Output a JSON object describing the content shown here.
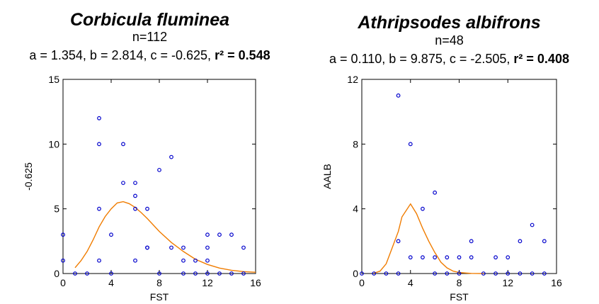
{
  "colors": {
    "points": "#0000cc",
    "curve": "#f07c00",
    "axes": "#000000"
  },
  "chart_data": [
    {
      "type": "scatter",
      "title": "Corbicula fluminea",
      "n_label": "n=112",
      "params_text": "a = 1.354, b = 2.814, c = -0.625,",
      "r2_text": "r² = 0.548",
      "xlabel": "FST",
      "ylabel": "-0.625",
      "xlim": [
        0,
        16
      ],
      "ylim": [
        0,
        15
      ],
      "xticks": [
        0,
        4,
        8,
        12,
        16
      ],
      "yticks": [
        0,
        5,
        10,
        15
      ],
      "grid": false,
      "points": [
        [
          0,
          3
        ],
        [
          0,
          1
        ],
        [
          1,
          0
        ],
        [
          2,
          0
        ],
        [
          3,
          12
        ],
        [
          3,
          10
        ],
        [
          3,
          5
        ],
        [
          3,
          1
        ],
        [
          4,
          3
        ],
        [
          4,
          0
        ],
        [
          5,
          10
        ],
        [
          5,
          7
        ],
        [
          6,
          7
        ],
        [
          6,
          6
        ],
        [
          6,
          5
        ],
        [
          6,
          1
        ],
        [
          7,
          5
        ],
        [
          7,
          2
        ],
        [
          7,
          2
        ],
        [
          8,
          8
        ],
        [
          8,
          0
        ],
        [
          9,
          9
        ],
        [
          9,
          2
        ],
        [
          10,
          2
        ],
        [
          10,
          1
        ],
        [
          10,
          0
        ],
        [
          11,
          1
        ],
        [
          11,
          0
        ],
        [
          12,
          3
        ],
        [
          12,
          2
        ],
        [
          12,
          1
        ],
        [
          12,
          0
        ],
        [
          13,
          3
        ],
        [
          13,
          0
        ],
        [
          14,
          3
        ],
        [
          14,
          0
        ],
        [
          15,
          2
        ],
        [
          15,
          0
        ]
      ],
      "curve": [
        [
          1,
          0.45
        ],
        [
          1.5,
          1.0
        ],
        [
          2,
          1.7
        ],
        [
          2.5,
          2.6
        ],
        [
          3,
          3.6
        ],
        [
          3.5,
          4.4
        ],
        [
          4,
          5.0
        ],
        [
          4.5,
          5.45
        ],
        [
          5,
          5.55
        ],
        [
          5.5,
          5.4
        ],
        [
          6,
          5.1
        ],
        [
          6.5,
          4.7
        ],
        [
          7,
          4.25
        ],
        [
          7.5,
          3.75
        ],
        [
          8,
          3.25
        ],
        [
          9,
          2.4
        ],
        [
          10,
          1.7
        ],
        [
          11,
          1.1
        ],
        [
          12,
          0.7
        ],
        [
          13,
          0.42
        ],
        [
          14,
          0.25
        ],
        [
          15,
          0.15
        ],
        [
          16,
          0.1
        ]
      ]
    },
    {
      "type": "scatter",
      "title": "Athripsodes albifrons",
      "n_label": "n=48",
      "params_text": "a = 0.110, b = 9.875, c = -2.505,",
      "r2_text": "r² = 0.408",
      "xlabel": "FST",
      "ylabel": "AALB",
      "xlim": [
        0,
        16
      ],
      "ylim": [
        0,
        12
      ],
      "xticks": [
        0,
        4,
        8,
        12,
        16
      ],
      "yticks": [
        0,
        4,
        8,
        12
      ],
      "grid": false,
      "points": [
        [
          0,
          0
        ],
        [
          1,
          0
        ],
        [
          2,
          0
        ],
        [
          3,
          11
        ],
        [
          3,
          2
        ],
        [
          3,
          0
        ],
        [
          4,
          8
        ],
        [
          4,
          1
        ],
        [
          5,
          4
        ],
        [
          5,
          1
        ],
        [
          6,
          5
        ],
        [
          6,
          1
        ],
        [
          6,
          0
        ],
        [
          7,
          1
        ],
        [
          7,
          0
        ],
        [
          8,
          1
        ],
        [
          8,
          0
        ],
        [
          9,
          2
        ],
        [
          9,
          1
        ],
        [
          10,
          0
        ],
        [
          11,
          1
        ],
        [
          11,
          0
        ],
        [
          12,
          1
        ],
        [
          12,
          0
        ],
        [
          13,
          2
        ],
        [
          13,
          0
        ],
        [
          14,
          3
        ],
        [
          14,
          0
        ],
        [
          15,
          2
        ],
        [
          15,
          0
        ]
      ],
      "curve": [
        [
          1,
          0.02
        ],
        [
          1.5,
          0.15
        ],
        [
          2,
          0.6
        ],
        [
          2.5,
          1.6
        ],
        [
          3,
          2.6
        ],
        [
          3.3,
          3.5
        ],
        [
          4,
          4.3
        ],
        [
          4.5,
          3.7
        ],
        [
          5,
          2.8
        ],
        [
          5.5,
          2.0
        ],
        [
          6,
          1.3
        ],
        [
          6.5,
          0.7
        ],
        [
          7,
          0.35
        ],
        [
          7.5,
          0.15
        ],
        [
          8,
          0.06
        ],
        [
          9,
          0.01
        ],
        [
          10,
          0
        ]
      ]
    }
  ]
}
